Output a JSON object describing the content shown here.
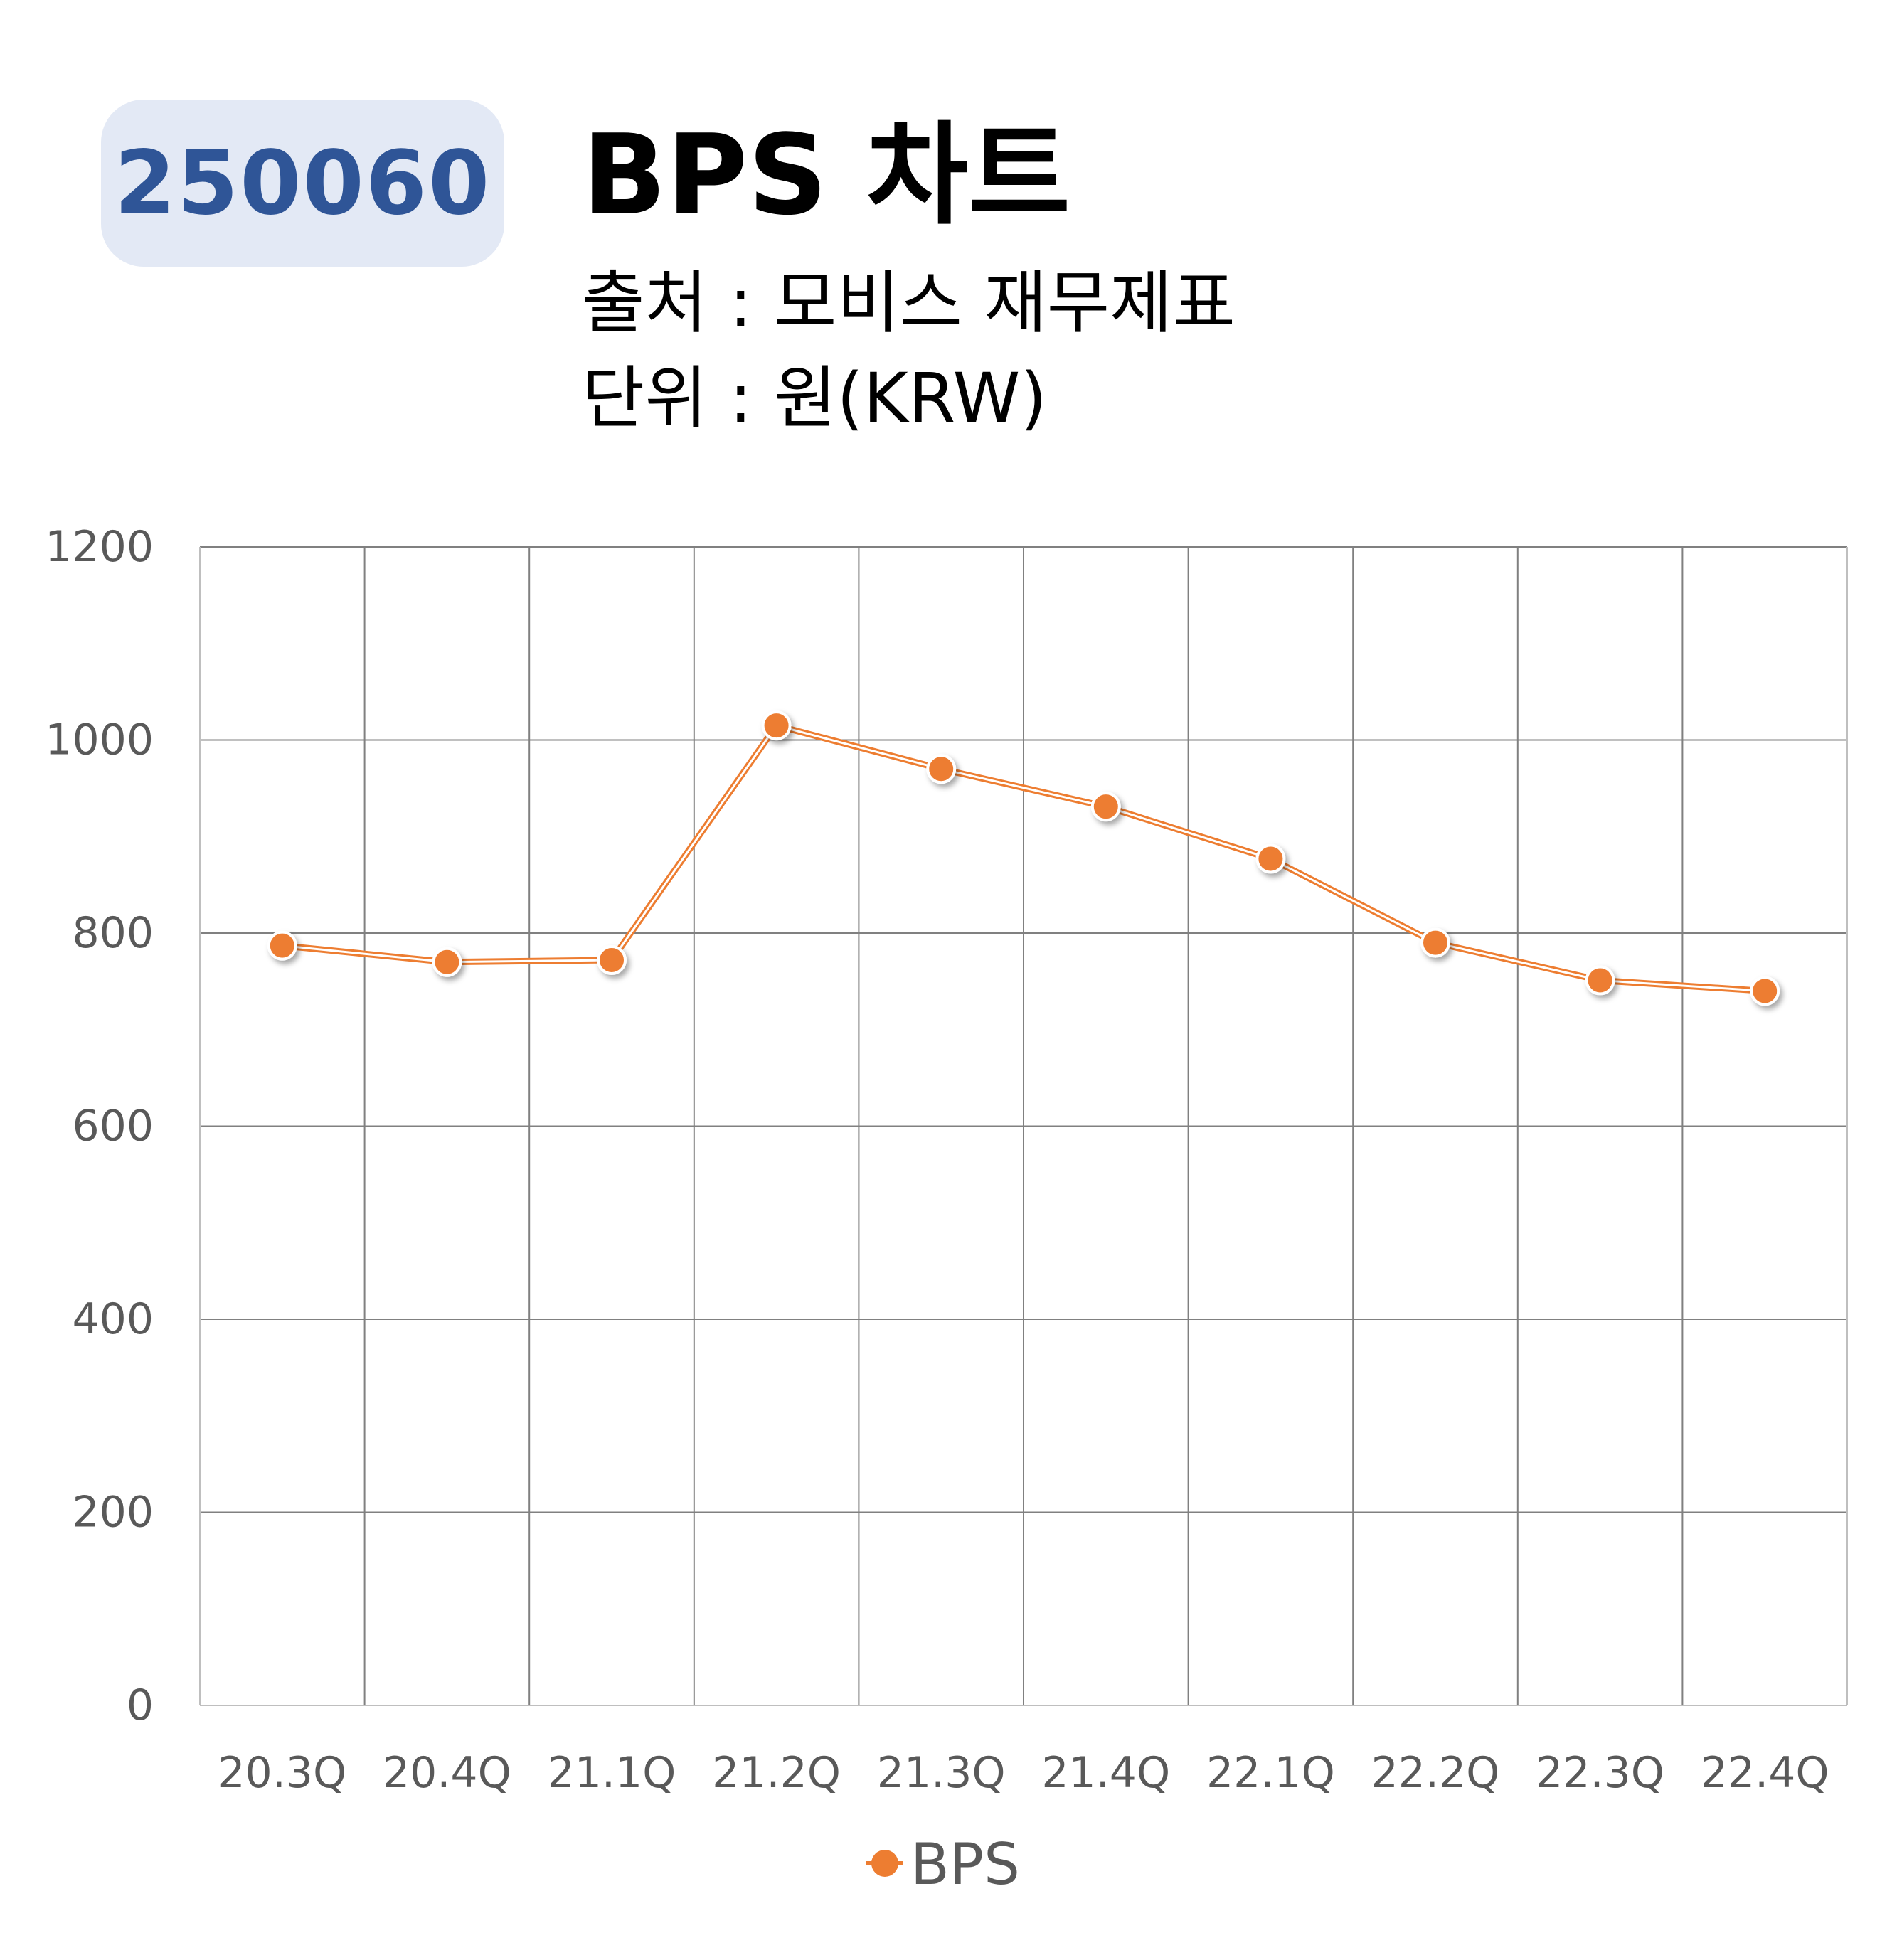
{
  "header": {
    "code": "250060",
    "title": "BPS 차트",
    "source": "출처 : 모비스 재무제표",
    "unit": "단위 : 원(KRW)"
  },
  "colors": {
    "badge_bg": "#e3e9f5",
    "badge_text": "#2f5597",
    "series": "#ed7d31",
    "grid": "#808080"
  },
  "chart_data": {
    "type": "line",
    "categories": [
      "20.3Q",
      "20.4Q",
      "21.1Q",
      "21.2Q",
      "21.3Q",
      "21.4Q",
      "22.1Q",
      "22.2Q",
      "22.3Q",
      "22.4Q"
    ],
    "series": [
      {
        "name": "BPS",
        "values": [
          787,
          770,
          772,
          1015,
          970,
          931,
          877,
          790,
          751,
          740
        ]
      }
    ],
    "ylim": [
      0,
      1200
    ],
    "yticks": [
      0,
      200,
      400,
      600,
      800,
      1000,
      1200
    ],
    "grid": true,
    "legend": "bottom"
  }
}
